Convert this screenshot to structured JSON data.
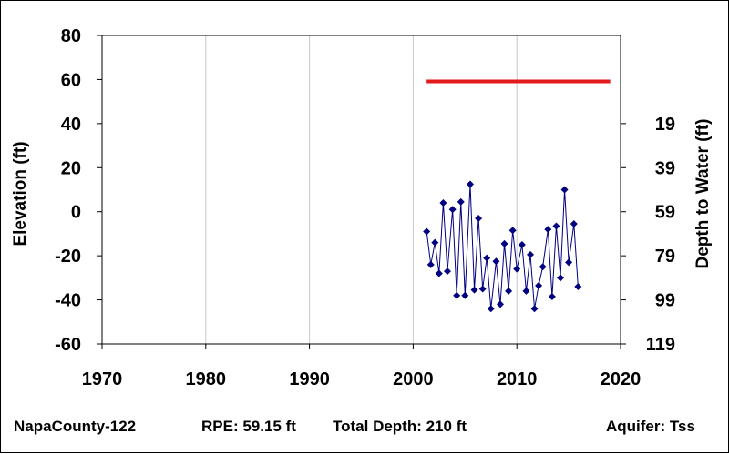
{
  "chart_data": {
    "type": "line",
    "ylabel_left": "Elevation (ft)",
    "ylabel_right": "Depth to Water (ft)",
    "xlim": [
      1970,
      2020
    ],
    "ylim": [
      -60,
      80
    ],
    "x_ticks": [
      "1970",
      "1980",
      "1990",
      "2000",
      "2010",
      "2020"
    ],
    "y_ticks": [
      "80",
      "60",
      "40",
      "20",
      "0",
      "-20",
      "-40",
      "-60"
    ],
    "y_tick_values": [
      80,
      60,
      40,
      20,
      0,
      -20,
      -40,
      -60
    ],
    "right_ticks": [
      "19",
      "39",
      "59",
      "79",
      "99",
      "119"
    ],
    "right_tick_elevations": [
      40,
      20,
      0,
      -20,
      -40,
      -60
    ],
    "grid": true,
    "series": [
      {
        "color": "#000080",
        "marker": "diamond",
        "points": [
          [
            2001.3,
            -9
          ],
          [
            2001.7,
            -24
          ],
          [
            2002.1,
            -14
          ],
          [
            2002.5,
            -28
          ],
          [
            2002.9,
            4
          ],
          [
            2003.3,
            -27
          ],
          [
            2003.8,
            1
          ],
          [
            2004.2,
            -38
          ],
          [
            2004.6,
            4.5
          ],
          [
            2005.0,
            -38
          ],
          [
            2005.5,
            12.5
          ],
          [
            2005.9,
            -35.5
          ],
          [
            2006.3,
            -3
          ],
          [
            2006.7,
            -35
          ],
          [
            2007.1,
            -21
          ],
          [
            2007.5,
            -44
          ],
          [
            2008.0,
            -22.5
          ],
          [
            2008.4,
            -42
          ],
          [
            2008.8,
            -14.5
          ],
          [
            2009.2,
            -36
          ],
          [
            2009.6,
            -8.5
          ],
          [
            2010.0,
            -26
          ],
          [
            2010.5,
            -15
          ],
          [
            2010.9,
            -36
          ],
          [
            2011.3,
            -19.5
          ],
          [
            2011.7,
            -44
          ],
          [
            2012.1,
            -33.5
          ],
          [
            2012.5,
            -25
          ],
          [
            2013.0,
            -8
          ],
          [
            2013.4,
            -38.5
          ],
          [
            2013.8,
            -6.5
          ],
          [
            2014.2,
            -30
          ],
          [
            2014.6,
            10
          ],
          [
            2015.0,
            -23
          ],
          [
            2015.5,
            -5.5
          ],
          [
            2015.9,
            -34
          ]
        ]
      },
      {
        "color": "#e31a1c",
        "points": [
          [
            2001.3,
            59.15
          ],
          [
            2019.0,
            59.15
          ]
        ]
      }
    ]
  },
  "footer": {
    "well": "NapaCounty-122",
    "rpe": "RPE: 59.15 ft",
    "total_depth": "Total Depth: 210 ft",
    "aquifer": "Aquifer: Tss"
  }
}
